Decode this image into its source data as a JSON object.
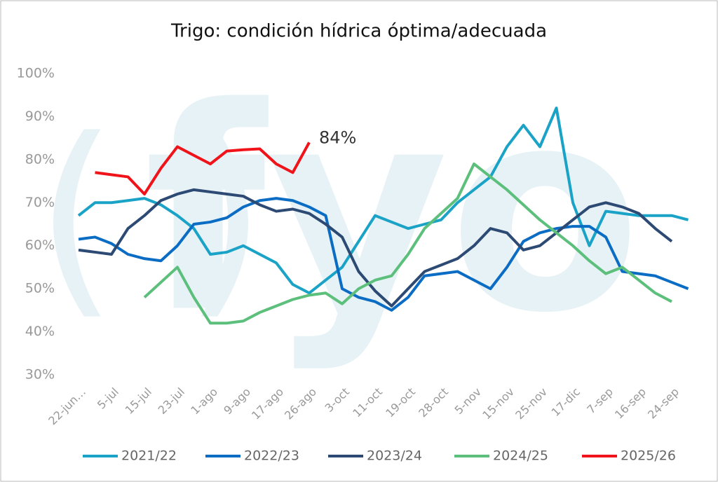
{
  "chart_data": {
    "type": "line",
    "title": "Trigo: condición hídrica óptima/adecuada",
    "watermark": "fyo",
    "categories": [
      "22-jun…",
      null,
      "5-jul",
      null,
      "15-jul",
      null,
      "23-jul",
      null,
      "1-ago",
      null,
      "9-ago",
      null,
      "17-ago",
      null,
      "26-ago",
      null,
      "3-oct",
      null,
      "11-oct",
      null,
      "19-oct",
      null,
      "28-oct",
      null,
      "5-nov",
      null,
      "15-nov",
      null,
      "25-nov",
      null,
      "17-dic",
      null,
      "7-sep",
      null,
      "16-sep",
      null,
      "24-sep",
      null
    ],
    "series": [
      {
        "name": "2021/22",
        "color": "#1aa3c6",
        "values": [
          67,
          70,
          70,
          70.5,
          71,
          69.5,
          67,
          64,
          58,
          58.5,
          60,
          58,
          56,
          51,
          49,
          52,
          55,
          61,
          67,
          65.5,
          64,
          65,
          66,
          70,
          73,
          76,
          83,
          88,
          83,
          92,
          70,
          60,
          68,
          67.5,
          67,
          67,
          67,
          66
        ]
      },
      {
        "name": "2022/23",
        "color": "#0b6cc4",
        "values": [
          61.5,
          62,
          60.5,
          58,
          57,
          56.5,
          60,
          65,
          65.5,
          66.5,
          69,
          70.5,
          71,
          70.5,
          69,
          67,
          50,
          48,
          47,
          45,
          48,
          53,
          53.5,
          54,
          52,
          50,
          55,
          61,
          63,
          64,
          64.5,
          64.5,
          62,
          54,
          53.5,
          53,
          51.5,
          50
        ]
      },
      {
        "name": "2023/24",
        "color": "#2c4a73",
        "values": [
          59,
          58.5,
          58,
          64,
          67,
          70.5,
          72,
          73,
          72.5,
          72,
          71.5,
          69.5,
          68,
          68.5,
          67.5,
          65,
          62,
          54,
          49.5,
          46,
          50,
          54,
          55.5,
          57,
          60,
          64,
          63,
          59,
          60,
          63,
          66,
          69,
          70,
          69,
          67.5,
          64,
          61,
          null
        ]
      },
      {
        "name": "2024/25",
        "color": "#5cbf7b",
        "values": [
          null,
          null,
          null,
          null,
          48,
          51.5,
          55,
          48,
          42,
          42,
          42.5,
          44.5,
          46,
          47.5,
          48.5,
          49,
          46.5,
          50,
          52,
          53,
          58,
          64,
          67.5,
          71,
          79,
          76,
          73,
          69.5,
          66,
          63,
          60,
          56.5,
          53.5,
          55,
          52,
          49,
          47,
          null
        ]
      },
      {
        "name": "2025/26",
        "color": "#f0141a",
        "values": [
          null,
          77,
          76.5,
          76,
          72,
          78,
          83,
          81,
          79,
          82,
          82.3,
          82.5,
          79,
          77,
          84,
          null,
          null,
          null,
          null,
          null,
          null,
          null,
          null,
          null,
          null,
          null,
          null,
          null,
          null,
          null,
          null,
          null,
          null,
          null,
          null,
          null,
          null,
          null
        ],
        "value_labels": [
          null,
          null,
          null,
          null,
          null,
          null,
          null,
          null,
          null,
          null,
          null,
          null,
          null,
          null,
          "84%",
          null,
          null,
          null,
          null,
          null,
          null,
          null,
          null,
          null,
          null,
          null,
          null,
          null,
          null,
          null,
          null,
          null,
          null,
          null,
          null,
          null,
          null,
          null
        ]
      }
    ],
    "ylim": [
      30,
      100
    ],
    "yticks": [
      {
        "value": 30,
        "label": "30%"
      },
      {
        "value": 40,
        "label": "40%"
      },
      {
        "value": 50,
        "label": "50%"
      },
      {
        "value": 60,
        "label": "60%"
      },
      {
        "value": 70,
        "label": "70%"
      },
      {
        "value": 80,
        "label": "80%"
      },
      {
        "value": 90,
        "label": "90%"
      },
      {
        "value": 100,
        "label": "100%"
      }
    ],
    "grid": false,
    "legend": "bottom"
  }
}
